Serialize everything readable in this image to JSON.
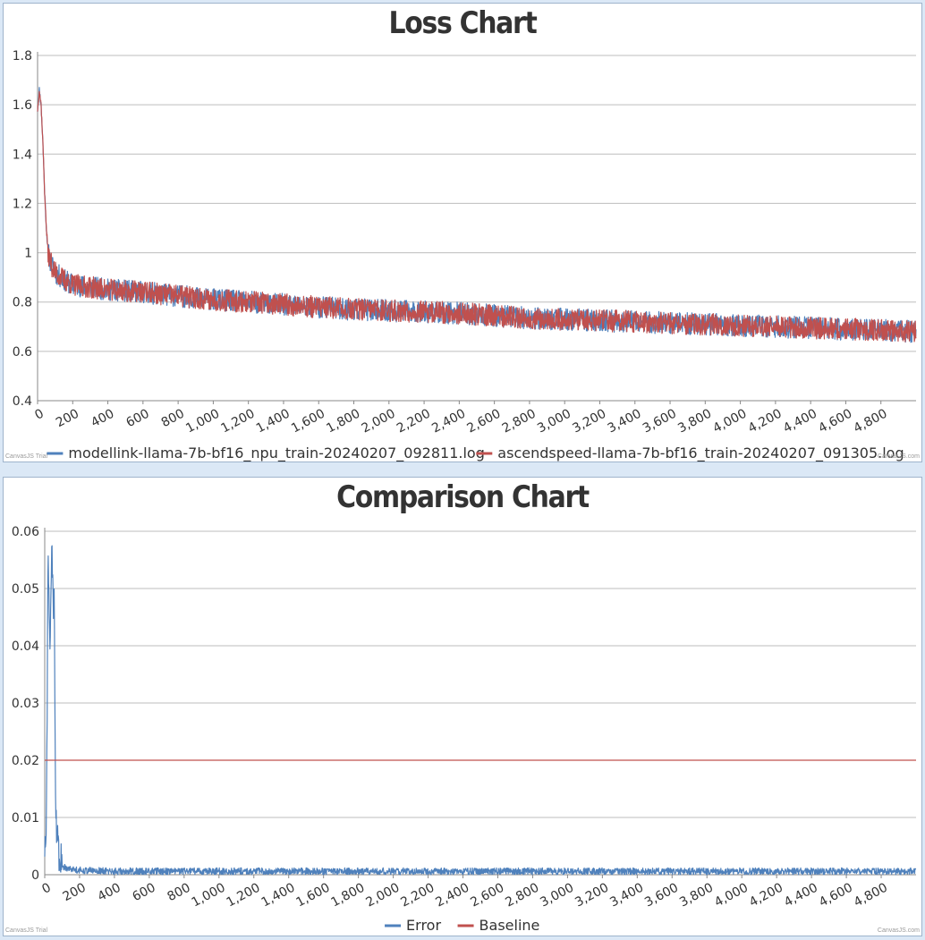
{
  "chart_data": [
    {
      "type": "line",
      "title": "Loss Chart",
      "xlim": [
        0,
        5000
      ],
      "ylim": [
        0.4,
        1.8
      ],
      "x_ticks": [
        0,
        200,
        400,
        600,
        800,
        1000,
        1200,
        1400,
        1600,
        1800,
        2000,
        2200,
        2400,
        2600,
        2800,
        3000,
        3200,
        3400,
        3600,
        3800,
        4000,
        4200,
        4400,
        4600,
        4800
      ],
      "x_tick_labels": [
        "0",
        "200",
        "400",
        "600",
        "800",
        "1,000",
        "1,200",
        "1,400",
        "1,600",
        "1,800",
        "2,000",
        "2,200",
        "2,400",
        "2,600",
        "2,800",
        "3,000",
        "3,200",
        "3,400",
        "3,600",
        "3,800",
        "4,000",
        "4,200",
        "4,400",
        "4,600",
        "4,800"
      ],
      "y_ticks": [
        0.4,
        0.6,
        0.8,
        1,
        1.2,
        1.4,
        1.6,
        1.8
      ],
      "y_tick_labels": [
        "0.4",
        "0.6",
        "0.8",
        "1",
        "1.2",
        "1.4",
        "1.6",
        "1.8"
      ],
      "grid": true,
      "legend_position": "bottom",
      "series": [
        {
          "name": "modellink-llama-7b-bf16_npu_train-20240207_092811.log",
          "color": "#4f81bc",
          "x": [
            0,
            10,
            20,
            30,
            40,
            50,
            60,
            80,
            100,
            150,
            200,
            300,
            400,
            500,
            600,
            800,
            1000,
            1200,
            1400,
            1600,
            1800,
            2000,
            2200,
            2400,
            2600,
            2800,
            3000,
            3200,
            3400,
            3600,
            3800,
            4000,
            4200,
            4400,
            4600,
            4800,
            5000
          ],
          "y": [
            1.58,
            1.66,
            1.6,
            1.45,
            1.25,
            1.1,
            1.0,
            0.95,
            0.92,
            0.89,
            0.87,
            0.86,
            0.85,
            0.845,
            0.84,
            0.825,
            0.81,
            0.8,
            0.79,
            0.78,
            0.77,
            0.765,
            0.76,
            0.755,
            0.745,
            0.735,
            0.73,
            0.725,
            0.72,
            0.715,
            0.71,
            0.705,
            0.7,
            0.695,
            0.69,
            0.685,
            0.68
          ]
        },
        {
          "name": "ascendspeed-llama-7b-bf16_train-20240207_091305.log",
          "color": "#c0504e",
          "x": [
            0,
            10,
            20,
            30,
            40,
            50,
            60,
            80,
            100,
            150,
            200,
            300,
            400,
            500,
            600,
            800,
            1000,
            1200,
            1400,
            1600,
            1800,
            2000,
            2200,
            2400,
            2600,
            2800,
            3000,
            3200,
            3400,
            3600,
            3800,
            4000,
            4200,
            4400,
            4600,
            4800,
            5000
          ],
          "y": [
            1.58,
            1.66,
            1.6,
            1.45,
            1.25,
            1.1,
            1.0,
            0.95,
            0.92,
            0.89,
            0.87,
            0.86,
            0.85,
            0.845,
            0.84,
            0.825,
            0.81,
            0.8,
            0.79,
            0.78,
            0.77,
            0.765,
            0.76,
            0.755,
            0.745,
            0.735,
            0.73,
            0.725,
            0.72,
            0.715,
            0.71,
            0.705,
            0.7,
            0.695,
            0.69,
            0.685,
            0.68
          ]
        }
      ],
      "watermark_left": "CanvasJS Trial",
      "watermark_right": "CanvasJS.com"
    },
    {
      "type": "line",
      "title": "Comparison Chart",
      "xlim": [
        0,
        5000
      ],
      "ylim": [
        0,
        0.06
      ],
      "x_ticks": [
        0,
        200,
        400,
        600,
        800,
        1000,
        1200,
        1400,
        1600,
        1800,
        2000,
        2200,
        2400,
        2600,
        2800,
        3000,
        3200,
        3400,
        3600,
        3800,
        4000,
        4200,
        4400,
        4600,
        4800
      ],
      "x_tick_labels": [
        "0",
        "200",
        "400",
        "600",
        "800",
        "1,000",
        "1,200",
        "1,400",
        "1,600",
        "1,800",
        "2,000",
        "2,200",
        "2,400",
        "2,600",
        "2,800",
        "3,000",
        "3,200",
        "3,400",
        "3,600",
        "3,800",
        "4,000",
        "4,200",
        "4,400",
        "4,600",
        "4,800"
      ],
      "y_ticks": [
        0,
        0.01,
        0.02,
        0.03,
        0.04,
        0.05,
        0.06
      ],
      "y_tick_labels": [
        "0",
        "0.01",
        "0.02",
        "0.03",
        "0.04",
        "0.05",
        "0.06"
      ],
      "grid": true,
      "legend_position": "bottom",
      "series": [
        {
          "name": "Error",
          "color": "#4f81bc",
          "x": [
            0,
            10,
            20,
            30,
            40,
            50,
            55,
            60,
            65,
            70,
            80,
            90,
            100,
            150,
            200,
            400,
            800,
            1200,
            1600,
            2000,
            2400,
            2800,
            3200,
            3600,
            4000,
            4400,
            4800,
            5000
          ],
          "y": [
            0.005,
            0.012,
            0.059,
            0.036,
            0.058,
            0.045,
            0.052,
            0.02,
            0.012,
            0.006,
            0.003,
            0.002,
            0.0015,
            0.001,
            0.0008,
            0.0006,
            0.0006,
            0.0006,
            0.0006,
            0.0006,
            0.0006,
            0.0006,
            0.0006,
            0.0006,
            0.0006,
            0.0006,
            0.0006,
            0.0006
          ]
        },
        {
          "name": "Baseline",
          "color": "#c0504e",
          "x": [
            0,
            5000
          ],
          "y": [
            0.02,
            0.02
          ]
        }
      ],
      "watermark_left": "CanvasJS Trial",
      "watermark_right": "CanvasJS.com"
    }
  ]
}
